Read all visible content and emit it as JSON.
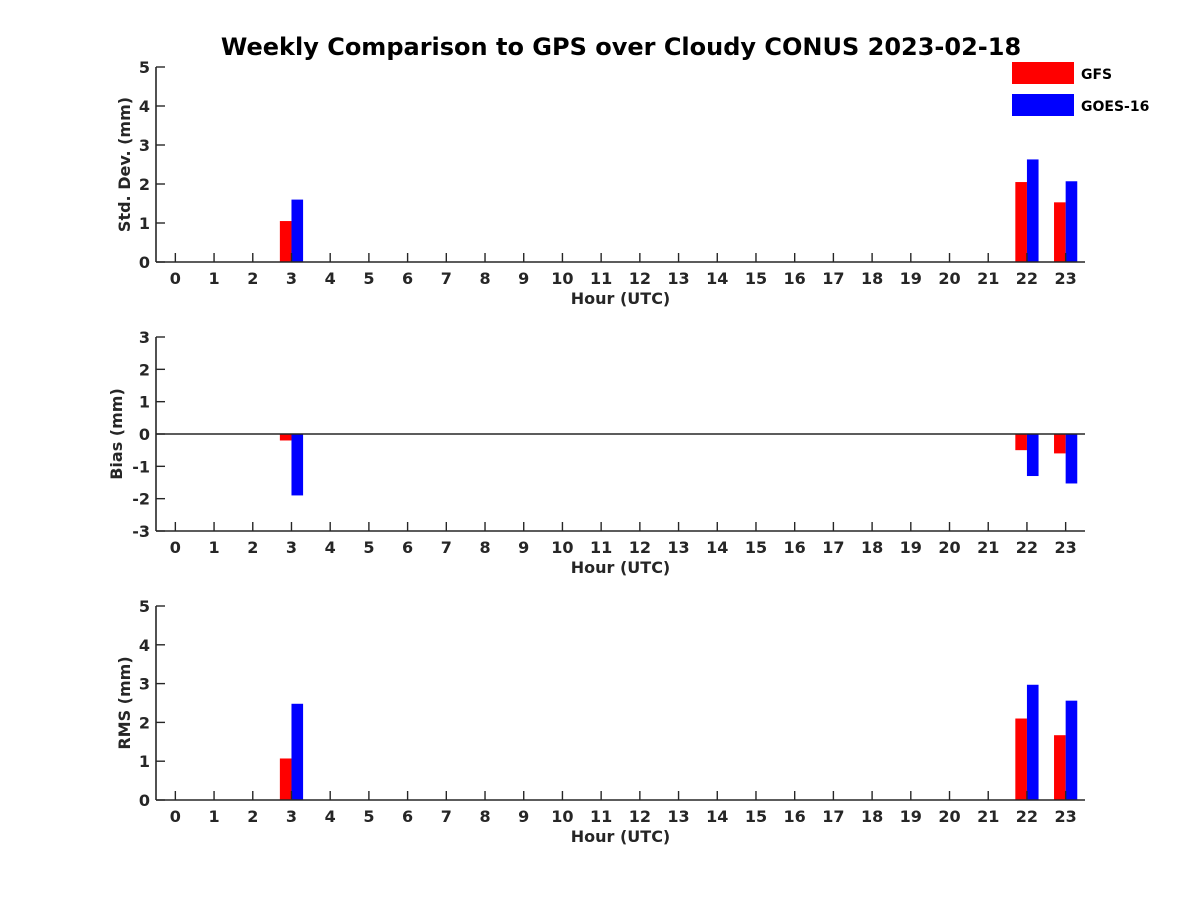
{
  "figure": {
    "title": "Weekly Comparison to GPS over Cloudy CONUS 2023-02-18"
  },
  "legend": {
    "placement": "top-right",
    "items": [
      {
        "name": "GFS",
        "color": "#ff0000"
      },
      {
        "name": "GOES-16",
        "color": "#0000ff"
      }
    ]
  },
  "chart_data": [
    {
      "type": "bar",
      "title": "",
      "xlabel": "Hour (UTC)",
      "ylabel": "Std. Dev. (mm)",
      "categories": [
        "0",
        "1",
        "2",
        "3",
        "4",
        "5",
        "6",
        "7",
        "8",
        "9",
        "10",
        "11",
        "12",
        "13",
        "14",
        "15",
        "16",
        "17",
        "18",
        "19",
        "20",
        "21",
        "22",
        "23"
      ],
      "xlim": [
        -0.5,
        23.5
      ],
      "ylim": [
        0,
        5
      ],
      "yticks": [
        0,
        1,
        2,
        3,
        4,
        5
      ],
      "zero_line": false,
      "grid": false,
      "series": [
        {
          "name": "GFS",
          "color": "#ff0000",
          "values": [
            null,
            null,
            null,
            1.05,
            null,
            null,
            null,
            null,
            null,
            null,
            null,
            null,
            null,
            null,
            null,
            null,
            null,
            null,
            null,
            null,
            null,
            null,
            2.05,
            1.53
          ]
        },
        {
          "name": "GOES-16",
          "color": "#0000ff",
          "values": [
            null,
            null,
            null,
            1.6,
            null,
            null,
            null,
            null,
            null,
            null,
            null,
            null,
            null,
            null,
            null,
            null,
            null,
            null,
            null,
            null,
            null,
            null,
            2.63,
            2.07
          ]
        }
      ]
    },
    {
      "type": "bar",
      "title": "",
      "xlabel": "Hour (UTC)",
      "ylabel": "Bias (mm)",
      "categories": [
        "0",
        "1",
        "2",
        "3",
        "4",
        "5",
        "6",
        "7",
        "8",
        "9",
        "10",
        "11",
        "12",
        "13",
        "14",
        "15",
        "16",
        "17",
        "18",
        "19",
        "20",
        "21",
        "22",
        "23"
      ],
      "xlim": [
        -0.5,
        23.5
      ],
      "ylim": [
        -3,
        3
      ],
      "yticks": [
        -3,
        -2,
        -1,
        0,
        1,
        2,
        3
      ],
      "zero_line": true,
      "grid": false,
      "series": [
        {
          "name": "GFS",
          "color": "#ff0000",
          "values": [
            null,
            null,
            null,
            -0.2,
            null,
            null,
            null,
            null,
            null,
            null,
            null,
            null,
            null,
            null,
            null,
            null,
            null,
            null,
            null,
            null,
            null,
            null,
            -0.5,
            -0.6
          ]
        },
        {
          "name": "GOES-16",
          "color": "#0000ff",
          "values": [
            null,
            null,
            null,
            -1.9,
            null,
            null,
            null,
            null,
            null,
            null,
            null,
            null,
            null,
            null,
            null,
            null,
            null,
            null,
            null,
            null,
            null,
            null,
            -1.3,
            -1.53
          ]
        }
      ]
    },
    {
      "type": "bar",
      "title": "",
      "xlabel": "Hour (UTC)",
      "ylabel": "RMS (mm)",
      "categories": [
        "0",
        "1",
        "2",
        "3",
        "4",
        "5",
        "6",
        "7",
        "8",
        "9",
        "10",
        "11",
        "12",
        "13",
        "14",
        "15",
        "16",
        "17",
        "18",
        "19",
        "20",
        "21",
        "22",
        "23"
      ],
      "xlim": [
        -0.5,
        23.5
      ],
      "ylim": [
        0,
        5
      ],
      "yticks": [
        0,
        1,
        2,
        3,
        4,
        5
      ],
      "zero_line": false,
      "grid": false,
      "series": [
        {
          "name": "GFS",
          "color": "#ff0000",
          "values": [
            null,
            null,
            null,
            1.07,
            null,
            null,
            null,
            null,
            null,
            null,
            null,
            null,
            null,
            null,
            null,
            null,
            null,
            null,
            null,
            null,
            null,
            null,
            2.1,
            1.67
          ]
        },
        {
          "name": "GOES-16",
          "color": "#0000ff",
          "values": [
            null,
            null,
            null,
            2.48,
            null,
            null,
            null,
            null,
            null,
            null,
            null,
            null,
            null,
            null,
            null,
            null,
            null,
            null,
            null,
            null,
            null,
            null,
            2.97,
            2.56
          ]
        }
      ]
    }
  ]
}
